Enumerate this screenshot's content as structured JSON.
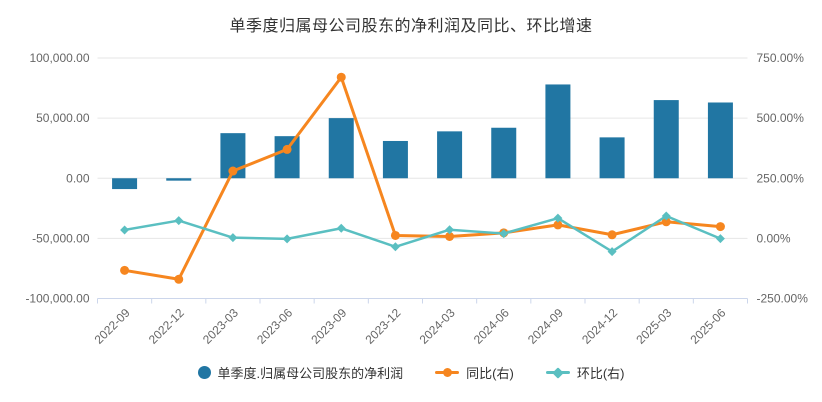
{
  "chart_data": {
    "type": "combo-bar-line",
    "title": "单季度归属母公司股东的净利润及同比、环比增速",
    "categories": [
      "2022-09",
      "2022-12",
      "2023-03",
      "2023-06",
      "2023-09",
      "2023-12",
      "2024-03",
      "2024-06",
      "2024-09",
      "2024-12",
      "2025-03",
      "2025-06"
    ],
    "series": [
      {
        "name": "单季度.归属母公司股东的净利润",
        "type": "bar",
        "yaxis": "left",
        "color": "#2176A3",
        "values": [
          -9000,
          -2000,
          37500,
          35000,
          50000,
          31000,
          39000,
          42000,
          78000,
          34000,
          65000,
          63000
        ]
      },
      {
        "name": "同比(右)",
        "type": "line",
        "yaxis": "right",
        "color": "#F6861F",
        "marker": "circle",
        "values": [
          -133,
          -170,
          280,
          370,
          670,
          12,
          8,
          23,
          56,
          15,
          69,
          49
        ]
      },
      {
        "name": "环比(右)",
        "type": "line",
        "yaxis": "right",
        "color": "#5ABFC1",
        "marker": "diamond",
        "values": [
          35,
          74,
          3,
          -2,
          42,
          -35,
          36,
          20,
          84,
          -55,
          93,
          -1
        ]
      }
    ],
    "left_axis": {
      "ticks": [
        "100,000.00",
        "50,000.00",
        "0.00",
        "-50,000.00",
        "-100,000.00"
      ],
      "min": -100000,
      "max": 100000
    },
    "right_axis": {
      "ticks": [
        "750.00%",
        "500.00%",
        "250.00%",
        "0.00%",
        "-250.00%"
      ],
      "min": -250,
      "max": 750
    },
    "grid": true,
    "legend_position": "bottom"
  },
  "legend": {
    "items": [
      {
        "label": "单季度.归属母公司股东的净利润",
        "marker": "circle",
        "color": "#2176A3"
      },
      {
        "label": "同比(右)",
        "marker": "line-circle",
        "color": "#F6861F"
      },
      {
        "label": "环比(右)",
        "marker": "line-diamond",
        "color": "#5ABFC1"
      }
    ]
  },
  "styles": {
    "grid_color": "#E6E6E6",
    "axis_line_color": "#CCD6EB",
    "tick_label_color": "#666666",
    "title_color": "#333333"
  }
}
